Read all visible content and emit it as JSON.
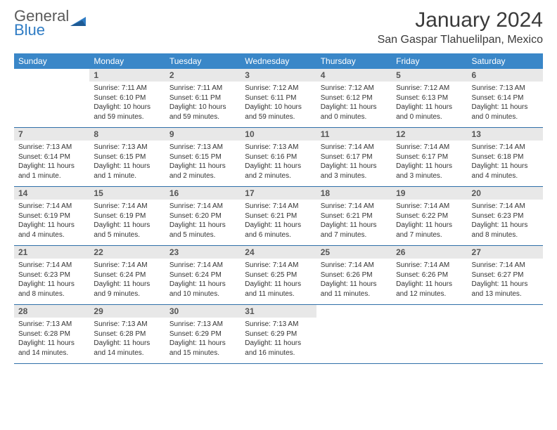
{
  "brand": {
    "line1": "General",
    "line2": "Blue",
    "tri_color": "#2f7cc4",
    "text_color": "#5a5a5a"
  },
  "header": {
    "title": "January 2024",
    "title_fontsize": 30,
    "location": "San Gaspar Tlahuelilpan, Mexico",
    "location_fontsize": 16
  },
  "colors": {
    "header_bg": "#3a87c8",
    "header_fg": "#ffffff",
    "daynum_bg": "#e8e8e8",
    "row_divider": "#2f6fa8",
    "body_text": "#333333"
  },
  "typography": {
    "day_header_fontsize": 12,
    "daynum_fontsize": 12,
    "body_fontsize": 10
  },
  "dayNames": [
    "Sunday",
    "Monday",
    "Tuesday",
    "Wednesday",
    "Thursday",
    "Friday",
    "Saturday"
  ],
  "weeks": [
    [
      {
        "n": "",
        "sunrise": "",
        "sunset": "",
        "daylight": ""
      },
      {
        "n": "1",
        "sunrise": "Sunrise: 7:11 AM",
        "sunset": "Sunset: 6:10 PM",
        "daylight": "Daylight: 10 hours and 59 minutes."
      },
      {
        "n": "2",
        "sunrise": "Sunrise: 7:11 AM",
        "sunset": "Sunset: 6:11 PM",
        "daylight": "Daylight: 10 hours and 59 minutes."
      },
      {
        "n": "3",
        "sunrise": "Sunrise: 7:12 AM",
        "sunset": "Sunset: 6:11 PM",
        "daylight": "Daylight: 10 hours and 59 minutes."
      },
      {
        "n": "4",
        "sunrise": "Sunrise: 7:12 AM",
        "sunset": "Sunset: 6:12 PM",
        "daylight": "Daylight: 11 hours and 0 minutes."
      },
      {
        "n": "5",
        "sunrise": "Sunrise: 7:12 AM",
        "sunset": "Sunset: 6:13 PM",
        "daylight": "Daylight: 11 hours and 0 minutes."
      },
      {
        "n": "6",
        "sunrise": "Sunrise: 7:13 AM",
        "sunset": "Sunset: 6:14 PM",
        "daylight": "Daylight: 11 hours and 0 minutes."
      }
    ],
    [
      {
        "n": "7",
        "sunrise": "Sunrise: 7:13 AM",
        "sunset": "Sunset: 6:14 PM",
        "daylight": "Daylight: 11 hours and 1 minute."
      },
      {
        "n": "8",
        "sunrise": "Sunrise: 7:13 AM",
        "sunset": "Sunset: 6:15 PM",
        "daylight": "Daylight: 11 hours and 1 minute."
      },
      {
        "n": "9",
        "sunrise": "Sunrise: 7:13 AM",
        "sunset": "Sunset: 6:15 PM",
        "daylight": "Daylight: 11 hours and 2 minutes."
      },
      {
        "n": "10",
        "sunrise": "Sunrise: 7:13 AM",
        "sunset": "Sunset: 6:16 PM",
        "daylight": "Daylight: 11 hours and 2 minutes."
      },
      {
        "n": "11",
        "sunrise": "Sunrise: 7:14 AM",
        "sunset": "Sunset: 6:17 PM",
        "daylight": "Daylight: 11 hours and 3 minutes."
      },
      {
        "n": "12",
        "sunrise": "Sunrise: 7:14 AM",
        "sunset": "Sunset: 6:17 PM",
        "daylight": "Daylight: 11 hours and 3 minutes."
      },
      {
        "n": "13",
        "sunrise": "Sunrise: 7:14 AM",
        "sunset": "Sunset: 6:18 PM",
        "daylight": "Daylight: 11 hours and 4 minutes."
      }
    ],
    [
      {
        "n": "14",
        "sunrise": "Sunrise: 7:14 AM",
        "sunset": "Sunset: 6:19 PM",
        "daylight": "Daylight: 11 hours and 4 minutes."
      },
      {
        "n": "15",
        "sunrise": "Sunrise: 7:14 AM",
        "sunset": "Sunset: 6:19 PM",
        "daylight": "Daylight: 11 hours and 5 minutes."
      },
      {
        "n": "16",
        "sunrise": "Sunrise: 7:14 AM",
        "sunset": "Sunset: 6:20 PM",
        "daylight": "Daylight: 11 hours and 5 minutes."
      },
      {
        "n": "17",
        "sunrise": "Sunrise: 7:14 AM",
        "sunset": "Sunset: 6:21 PM",
        "daylight": "Daylight: 11 hours and 6 minutes."
      },
      {
        "n": "18",
        "sunrise": "Sunrise: 7:14 AM",
        "sunset": "Sunset: 6:21 PM",
        "daylight": "Daylight: 11 hours and 7 minutes."
      },
      {
        "n": "19",
        "sunrise": "Sunrise: 7:14 AM",
        "sunset": "Sunset: 6:22 PM",
        "daylight": "Daylight: 11 hours and 7 minutes."
      },
      {
        "n": "20",
        "sunrise": "Sunrise: 7:14 AM",
        "sunset": "Sunset: 6:23 PM",
        "daylight": "Daylight: 11 hours and 8 minutes."
      }
    ],
    [
      {
        "n": "21",
        "sunrise": "Sunrise: 7:14 AM",
        "sunset": "Sunset: 6:23 PM",
        "daylight": "Daylight: 11 hours and 8 minutes."
      },
      {
        "n": "22",
        "sunrise": "Sunrise: 7:14 AM",
        "sunset": "Sunset: 6:24 PM",
        "daylight": "Daylight: 11 hours and 9 minutes."
      },
      {
        "n": "23",
        "sunrise": "Sunrise: 7:14 AM",
        "sunset": "Sunset: 6:24 PM",
        "daylight": "Daylight: 11 hours and 10 minutes."
      },
      {
        "n": "24",
        "sunrise": "Sunrise: 7:14 AM",
        "sunset": "Sunset: 6:25 PM",
        "daylight": "Daylight: 11 hours and 11 minutes."
      },
      {
        "n": "25",
        "sunrise": "Sunrise: 7:14 AM",
        "sunset": "Sunset: 6:26 PM",
        "daylight": "Daylight: 11 hours and 11 minutes."
      },
      {
        "n": "26",
        "sunrise": "Sunrise: 7:14 AM",
        "sunset": "Sunset: 6:26 PM",
        "daylight": "Daylight: 11 hours and 12 minutes."
      },
      {
        "n": "27",
        "sunrise": "Sunrise: 7:14 AM",
        "sunset": "Sunset: 6:27 PM",
        "daylight": "Daylight: 11 hours and 13 minutes."
      }
    ],
    [
      {
        "n": "28",
        "sunrise": "Sunrise: 7:13 AM",
        "sunset": "Sunset: 6:28 PM",
        "daylight": "Daylight: 11 hours and 14 minutes."
      },
      {
        "n": "29",
        "sunrise": "Sunrise: 7:13 AM",
        "sunset": "Sunset: 6:28 PM",
        "daylight": "Daylight: 11 hours and 14 minutes."
      },
      {
        "n": "30",
        "sunrise": "Sunrise: 7:13 AM",
        "sunset": "Sunset: 6:29 PM",
        "daylight": "Daylight: 11 hours and 15 minutes."
      },
      {
        "n": "31",
        "sunrise": "Sunrise: 7:13 AM",
        "sunset": "Sunset: 6:29 PM",
        "daylight": "Daylight: 11 hours and 16 minutes."
      },
      {
        "n": "",
        "sunrise": "",
        "sunset": "",
        "daylight": ""
      },
      {
        "n": "",
        "sunrise": "",
        "sunset": "",
        "daylight": ""
      },
      {
        "n": "",
        "sunrise": "",
        "sunset": "",
        "daylight": ""
      }
    ]
  ]
}
